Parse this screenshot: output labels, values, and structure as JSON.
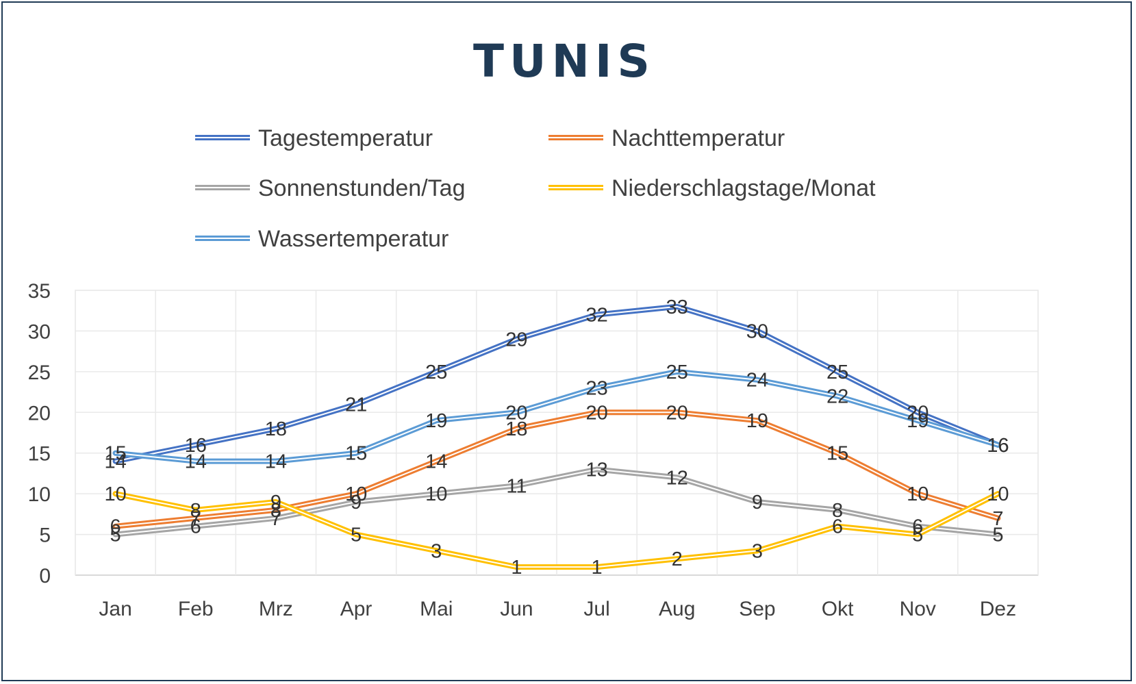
{
  "chart_data": {
    "type": "line",
    "title": "TUNIS",
    "title_color": "#1f3a55",
    "categories": [
      "Jan",
      "Feb",
      "Mrz",
      "Apr",
      "Mai",
      "Jun",
      "Jul",
      "Aug",
      "Sep",
      "Okt",
      "Nov",
      "Dez"
    ],
    "ylim": [
      0,
      35
    ],
    "yticks": [
      "0",
      "5",
      "10",
      "15",
      "20",
      "25",
      "30",
      "35"
    ],
    "grid": true,
    "legend_position": "top",
    "series": [
      {
        "name": "Tagestemperatur",
        "color": "#4472c4",
        "values": [
          14,
          16,
          18,
          21,
          25,
          29,
          32,
          33,
          30,
          25,
          20,
          16
        ]
      },
      {
        "name": "Nachttemperatur",
        "color": "#ed7d31",
        "values": [
          6,
          7,
          8,
          10,
          14,
          18,
          20,
          20,
          19,
          15,
          10,
          7
        ]
      },
      {
        "name": "Sonnenstunden/Tag",
        "color": "#a5a5a5",
        "values": [
          5,
          6,
          7,
          9,
          10,
          11,
          13,
          12,
          9,
          8,
          6,
          5
        ]
      },
      {
        "name": "Niederschlagstage/Monat",
        "color": "#ffc000",
        "values": [
          10,
          8,
          9,
          5,
          3,
          1,
          1,
          2,
          3,
          6,
          5,
          10
        ]
      },
      {
        "name": "Wassertemperatur",
        "color": "#5b9bd5",
        "values": [
          15,
          14,
          14,
          15,
          19,
          20,
          23,
          25,
          24,
          22,
          19,
          16
        ]
      }
    ]
  }
}
